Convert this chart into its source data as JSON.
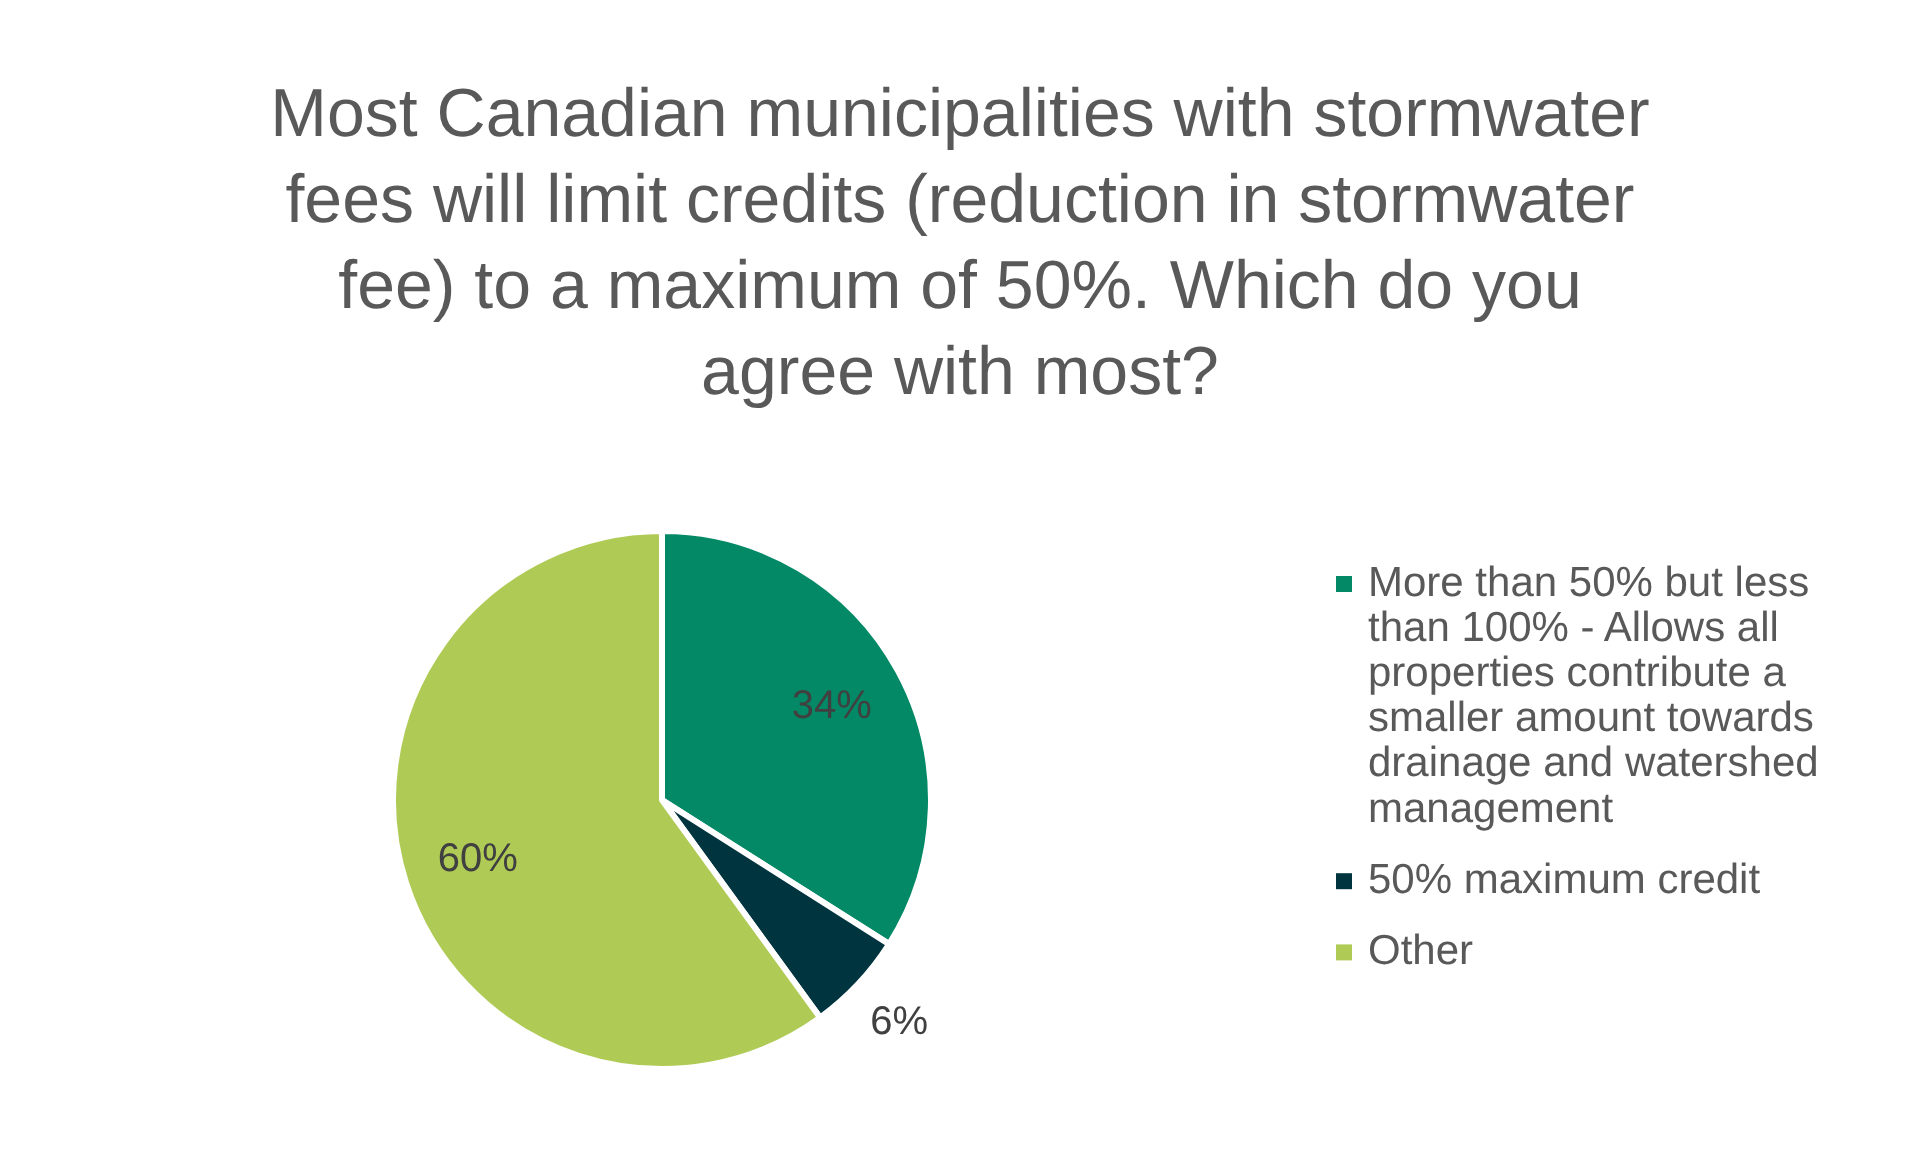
{
  "chart_data": {
    "type": "pie",
    "title": "Most Canadian municipalities with stormwater fees will limit credits (reduction in stormwater fee) to a maximum of 50%. Which do you agree with most?",
    "categories": [
      "More than 50% but less than 100% - Allows all properties contribute a smaller amount towards drainage and watershed management",
      "50% maximum credit",
      "Other"
    ],
    "values": [
      34,
      6,
      60
    ],
    "value_labels": [
      "34%",
      "6%",
      "60%"
    ],
    "colors": [
      "#038966",
      "#00343f",
      "#afcb55"
    ],
    "legend": "right"
  }
}
